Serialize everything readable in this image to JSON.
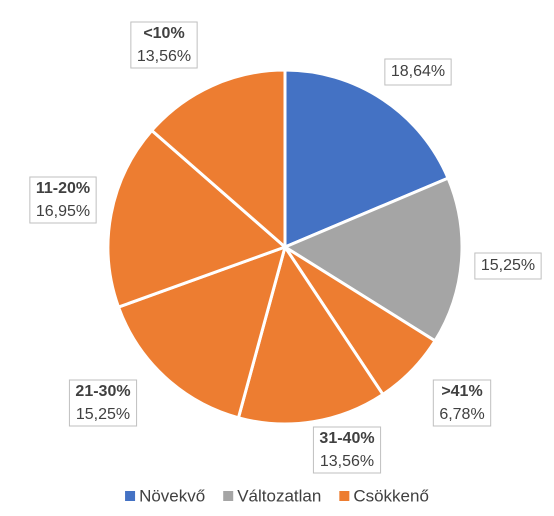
{
  "chart_data": {
    "type": "pie",
    "categories": [
      null,
      null,
      ">41%",
      "31-40%",
      "21-30%",
      "11-20%",
      "<10%"
    ],
    "values": [
      18.64,
      15.25,
      6.78,
      13.56,
      15.25,
      16.95,
      13.56
    ],
    "value_labels": [
      "18,64%",
      "15,25%",
      "6,78%",
      "13,56%",
      "15,25%",
      "16,95%",
      "13,56%"
    ],
    "colors": [
      "#4472c4",
      "#a5a5a5",
      "#ed7d31",
      "#ed7d31",
      "#ed7d31",
      "#ed7d31",
      "#ed7d31"
    ],
    "legend": [
      {
        "name": "Növekvő",
        "color": "#4472c4"
      },
      {
        "name": "Változatlan",
        "color": "#a5a5a5"
      },
      {
        "name": "Csökkenő",
        "color": "#ed7d31"
      }
    ]
  }
}
